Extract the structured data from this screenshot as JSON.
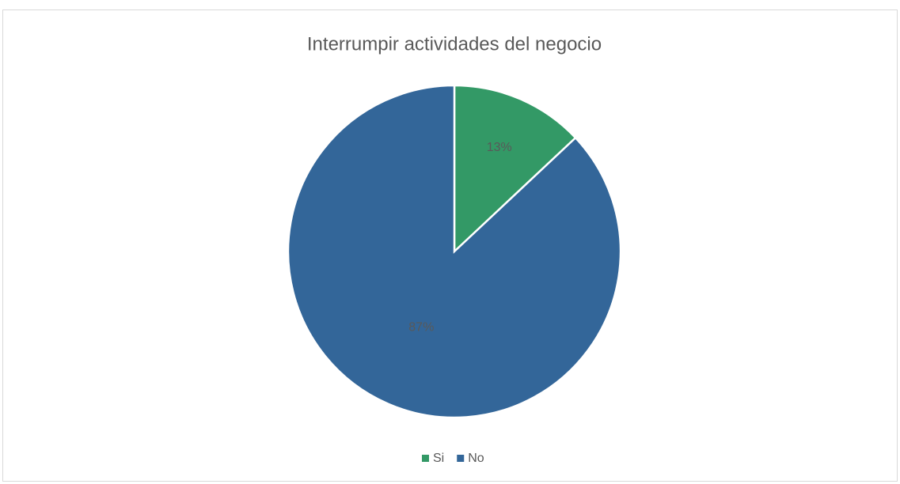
{
  "chart_data": {
    "type": "pie",
    "title": "Interrumpir actividades del negocio",
    "categories": [
      "Si",
      "No"
    ],
    "values": [
      13,
      87
    ],
    "value_labels": [
      "13%",
      "87%"
    ],
    "colors": [
      "#339966",
      "#336699"
    ],
    "legend": "bottom"
  }
}
